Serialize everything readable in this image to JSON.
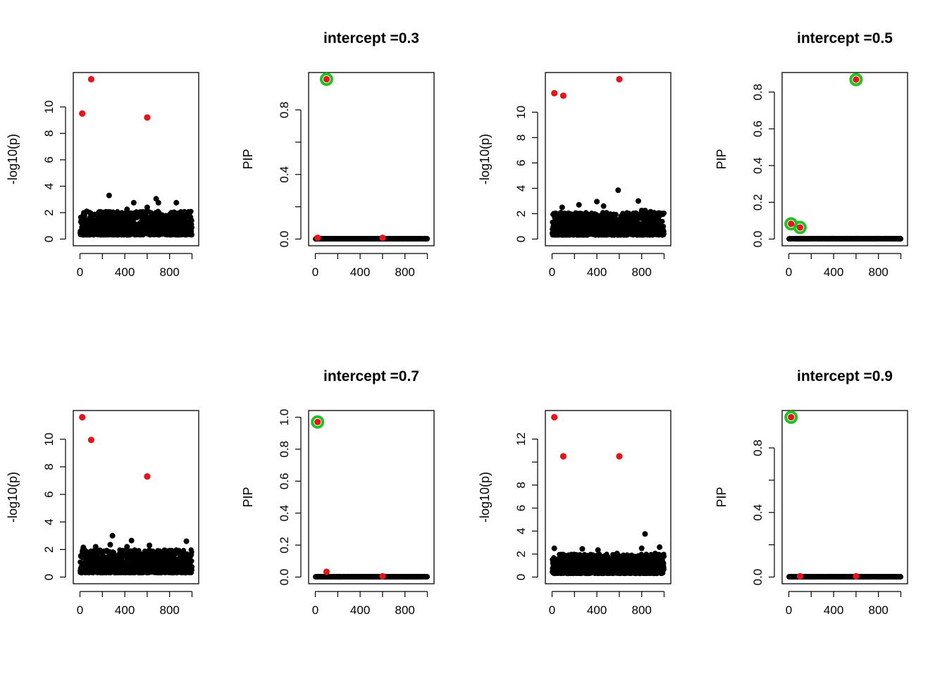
{
  "colors": {
    "background_points": "#000000",
    "causal_points": "#e8141a",
    "credible_set_ring": "#22c022",
    "frame": "#000000"
  },
  "chart_data": [
    {
      "type": "scatter",
      "title": "",
      "xlabel": "",
      "ylabel": "-log10(p)",
      "xlim": [
        0,
        1000
      ],
      "ylim": [
        0,
        12.1
      ],
      "xticks": [
        "0",
        "400",
        "800"
      ],
      "xtick_values": [
        0,
        400,
        800
      ],
      "yticks": [
        "0",
        "2",
        "4",
        "6",
        "8",
        "10"
      ],
      "ytick_values": [
        0,
        2,
        4,
        6,
        8,
        10
      ],
      "noise": {
        "n": 1000,
        "max": 2.1,
        "seed": 11,
        "outliers": [
          [
            260,
            3.3
          ],
          [
            480,
            2.75
          ],
          [
            600,
            2.4
          ],
          [
            680,
            3.05
          ],
          [
            700,
            2.75
          ],
          [
            860,
            2.75
          ],
          [
            420,
            2.25
          ],
          [
            60,
            2.1
          ],
          [
            900,
            2.05
          ]
        ]
      },
      "highlight": [
        [
          20,
          9.5
        ],
        [
          100,
          12.1
        ],
        [
          600,
          9.2
        ]
      ],
      "rings": []
    },
    {
      "type": "scatter",
      "title": "intercept =0.3",
      "xlabel": "",
      "ylabel": "PIP",
      "xlim": [
        0,
        1000
      ],
      "ylim": [
        0,
        0.99
      ],
      "xticks": [
        "0",
        "400",
        "800"
      ],
      "xtick_values": [
        0,
        400,
        800
      ],
      "yticks": [
        "0.0",
        "0.4",
        "0.8"
      ],
      "ytick_values": [
        0.0,
        0.4,
        0.8
      ],
      "minor_yticks": [
        0.2,
        0.6
      ],
      "noise": {
        "n": 1000,
        "max": 0.004,
        "seed": 12,
        "outliers": []
      },
      "highlight": [
        [
          20,
          0.008
        ],
        [
          100,
          0.99
        ],
        [
          600,
          0.008
        ]
      ],
      "rings": [
        [
          100,
          0.99
        ]
      ]
    },
    {
      "type": "scatter",
      "title": "",
      "xlabel": "",
      "ylabel": "-log10(p)",
      "xlim": [
        0,
        1000
      ],
      "ylim": [
        0,
        12.6
      ],
      "xticks": [
        "0",
        "400",
        "800"
      ],
      "xtick_values": [
        0,
        400,
        800
      ],
      "yticks": [
        "0",
        "2",
        "4",
        "6",
        "8",
        "10"
      ],
      "ytick_values": [
        0,
        2,
        4,
        6,
        8,
        10
      ],
      "noise": {
        "n": 1000,
        "max": 2.1,
        "seed": 13,
        "outliers": [
          [
            590,
            3.85
          ],
          [
            770,
            3.0
          ],
          [
            400,
            2.95
          ],
          [
            460,
            2.6
          ],
          [
            240,
            2.7
          ],
          [
            90,
            2.5
          ],
          [
            800,
            2.25
          ],
          [
            830,
            2.25
          ],
          [
            880,
            2.15
          ]
        ]
      },
      "highlight": [
        [
          20,
          11.5
        ],
        [
          100,
          11.3
        ],
        [
          600,
          12.6
        ]
      ],
      "rings": []
    },
    {
      "type": "scatter",
      "title": "intercept =0.5",
      "xlabel": "",
      "ylabel": "PIP",
      "xlim": [
        0,
        1000
      ],
      "ylim": [
        0,
        0.87
      ],
      "xticks": [
        "0",
        "400",
        "800"
      ],
      "xtick_values": [
        0,
        400,
        800
      ],
      "yticks": [
        "0.0",
        "0.2",
        "0.4",
        "0.6",
        "0.8"
      ],
      "ytick_values": [
        0.0,
        0.2,
        0.4,
        0.6,
        0.8
      ],
      "noise": {
        "n": 1000,
        "max": 0.004,
        "seed": 14,
        "outliers": []
      },
      "highlight": [
        [
          20,
          0.083
        ],
        [
          100,
          0.063
        ],
        [
          600,
          0.868
        ]
      ],
      "rings": [
        [
          20,
          0.083
        ],
        [
          100,
          0.063
        ],
        [
          600,
          0.868
        ]
      ]
    },
    {
      "type": "scatter",
      "title": "",
      "xlabel": "",
      "ylabel": "-log10(p)",
      "xlim": [
        0,
        1000
      ],
      "ylim": [
        0,
        11.6
      ],
      "xticks": [
        "0",
        "400",
        "800"
      ],
      "xtick_values": [
        0,
        400,
        800
      ],
      "yticks": [
        "0",
        "2",
        "4",
        "6",
        "8",
        "10"
      ],
      "ytick_values": [
        0,
        2,
        4,
        6,
        8,
        10
      ],
      "noise": {
        "n": 1000,
        "max": 2.0,
        "seed": 15,
        "outliers": [
          [
            290,
            3.0
          ],
          [
            460,
            2.65
          ],
          [
            620,
            2.3
          ],
          [
            950,
            2.6
          ],
          [
            270,
            2.35
          ],
          [
            140,
            2.2
          ],
          [
            30,
            2.15
          ],
          [
            420,
            2.2
          ]
        ]
      },
      "highlight": [
        [
          20,
          11.6
        ],
        [
          100,
          9.95
        ],
        [
          600,
          7.3
        ]
      ],
      "rings": []
    },
    {
      "type": "scatter",
      "title": "intercept =0.7",
      "xlabel": "",
      "ylabel": "PIP",
      "xlim": [
        0,
        1000
      ],
      "ylim": [
        0,
        1.0
      ],
      "xticks": [
        "0",
        "400",
        "800"
      ],
      "xtick_values": [
        0,
        400,
        800
      ],
      "yticks": [
        "0.0",
        "0.2",
        "0.4",
        "0.6",
        "0.8",
        "1.0"
      ],
      "ytick_values": [
        0.0,
        0.2,
        0.4,
        0.6,
        0.8,
        1.0
      ],
      "noise": {
        "n": 1000,
        "max": 0.004,
        "seed": 16,
        "outliers": []
      },
      "highlight": [
        [
          20,
          0.97
        ],
        [
          100,
          0.033
        ],
        [
          600,
          0.005
        ]
      ],
      "rings": [
        [
          20,
          0.97
        ]
      ]
    },
    {
      "type": "scatter",
      "title": "",
      "xlabel": "",
      "ylabel": "-log10(p)",
      "xlim": [
        0,
        1000
      ],
      "ylim": [
        0,
        13.9
      ],
      "xticks": [
        "0",
        "400",
        "800"
      ],
      "xtick_values": [
        0,
        400,
        800
      ],
      "yticks": [
        "0",
        "2",
        "4",
        "6",
        "8",
        "12"
      ],
      "ytick_values": [
        0,
        2,
        4,
        6,
        8,
        12
      ],
      "minor_yticks": [
        10
      ],
      "noise": {
        "n": 1000,
        "max": 2.0,
        "seed": 17,
        "outliers": [
          [
            830,
            3.75
          ],
          [
            20,
            2.5
          ],
          [
            960,
            2.6
          ],
          [
            800,
            2.5
          ],
          [
            270,
            2.45
          ],
          [
            410,
            2.35
          ],
          [
            580,
            2.05
          ],
          [
            920,
            2.05
          ]
        ]
      },
      "highlight": [
        [
          20,
          13.9
        ],
        [
          100,
          10.5
        ],
        [
          600,
          10.5
        ]
      ],
      "rings": []
    },
    {
      "type": "scatter",
      "title": "intercept =0.9",
      "xlabel": "",
      "ylabel": "PIP",
      "xlim": [
        0,
        1000
      ],
      "ylim": [
        0,
        0.99
      ],
      "xticks": [
        "0",
        "400",
        "800"
      ],
      "xtick_values": [
        0,
        400,
        800
      ],
      "yticks": [
        "0.0",
        "0.4",
        "0.8"
      ],
      "ytick_values": [
        0.0,
        0.4,
        0.8
      ],
      "minor_yticks": [
        0.2,
        0.6
      ],
      "noise": {
        "n": 1000,
        "max": 0.004,
        "seed": 18,
        "outliers": []
      },
      "highlight": [
        [
          20,
          0.99
        ],
        [
          100,
          0.005
        ],
        [
          600,
          0.005
        ]
      ],
      "rings": [
        [
          20,
          0.99
        ]
      ]
    }
  ]
}
